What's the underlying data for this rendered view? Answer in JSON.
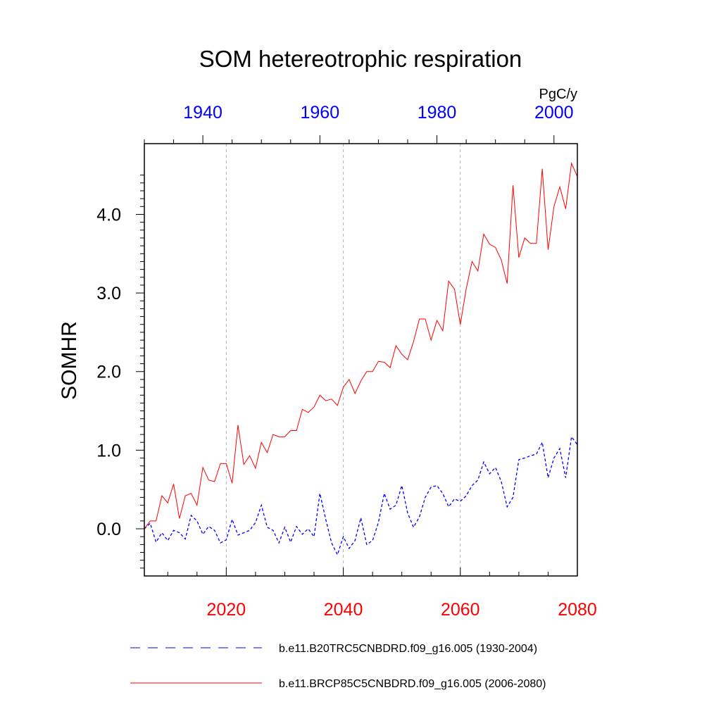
{
  "chart_data": {
    "type": "line",
    "title": "SOM hetereotrophic respiration",
    "ylabel": "SOMHR",
    "units": "PgC/y",
    "ylim": [
      -0.6,
      4.9
    ],
    "yticks": [
      0.0,
      1.0,
      2.0,
      3.0,
      4.0
    ],
    "ytick_labels": [
      "0.0",
      "1.0",
      "2.0",
      "3.0",
      "4.0"
    ],
    "grid": "vertical dashed",
    "legend_position": "bottom",
    "bottom_axis": {
      "range": [
        2006,
        2080
      ],
      "ticks": [
        2020,
        2040,
        2060,
        2080
      ],
      "tick_labels": [
        "2020",
        "2040",
        "2060",
        "2080"
      ],
      "color": "#ff0000"
    },
    "top_axis": {
      "range": [
        1930,
        2004
      ],
      "ticks": [
        1940,
        1960,
        1980,
        2000
      ],
      "tick_labels": [
        "1940",
        "1960",
        "1980",
        "2000"
      ],
      "color": "#0000ff"
    },
    "series": [
      {
        "name": "b.e11.B20TRC5CNBDRD.f09_g16.005 (1930-2004)",
        "axis": "top",
        "color": "#0000ff",
        "style": "dashed",
        "x_start": 1930,
        "values": [
          0.0,
          0.07,
          -0.17,
          -0.05,
          -0.15,
          -0.02,
          -0.05,
          -0.13,
          0.17,
          0.1,
          -0.07,
          0.03,
          -0.02,
          -0.18,
          -0.14,
          0.12,
          -0.08,
          -0.05,
          -0.02,
          0.08,
          0.3,
          0.02,
          -0.02,
          -0.18,
          0.02,
          -0.17,
          0.03,
          -0.07,
          0.0,
          -0.1,
          0.45,
          0.12,
          -0.18,
          -0.33,
          -0.1,
          -0.25,
          -0.15,
          0.14,
          -0.2,
          -0.15,
          0.08,
          0.45,
          0.25,
          0.3,
          0.55,
          0.2,
          0.02,
          0.15,
          0.4,
          0.53,
          0.55,
          0.45,
          0.28,
          0.38,
          0.35,
          0.42,
          0.55,
          0.62,
          0.85,
          0.7,
          0.78,
          0.6,
          0.28,
          0.4,
          0.88,
          0.9,
          0.93,
          0.95,
          1.1,
          0.65,
          0.9,
          1.02,
          0.65,
          1.17,
          1.07
        ]
      },
      {
        "name": "b.e11.BRCP85C5CNBDRD.f09_g16.005 (2006-2080)",
        "axis": "bottom",
        "color": "#ff0000",
        "style": "solid",
        "x_start": 2006,
        "values": [
          0.0,
          0.1,
          0.1,
          0.42,
          0.33,
          0.57,
          0.13,
          0.42,
          0.45,
          0.3,
          0.78,
          0.62,
          0.6,
          0.83,
          0.83,
          0.58,
          1.32,
          0.82,
          0.93,
          0.77,
          1.1,
          0.97,
          1.2,
          1.17,
          1.17,
          1.25,
          1.25,
          1.52,
          1.48,
          1.55,
          1.7,
          1.63,
          1.65,
          1.57,
          1.8,
          1.9,
          1.72,
          1.88,
          2.0,
          2.0,
          2.13,
          2.12,
          2.05,
          2.33,
          2.22,
          2.15,
          2.38,
          2.67,
          2.67,
          2.4,
          2.65,
          2.52,
          3.15,
          3.05,
          2.6,
          3.05,
          3.4,
          3.28,
          3.75,
          3.62,
          3.58,
          3.42,
          3.12,
          4.37,
          3.45,
          3.7,
          3.63,
          3.63,
          4.58,
          3.55,
          4.1,
          4.35,
          4.07,
          4.65,
          4.48
        ]
      }
    ]
  }
}
